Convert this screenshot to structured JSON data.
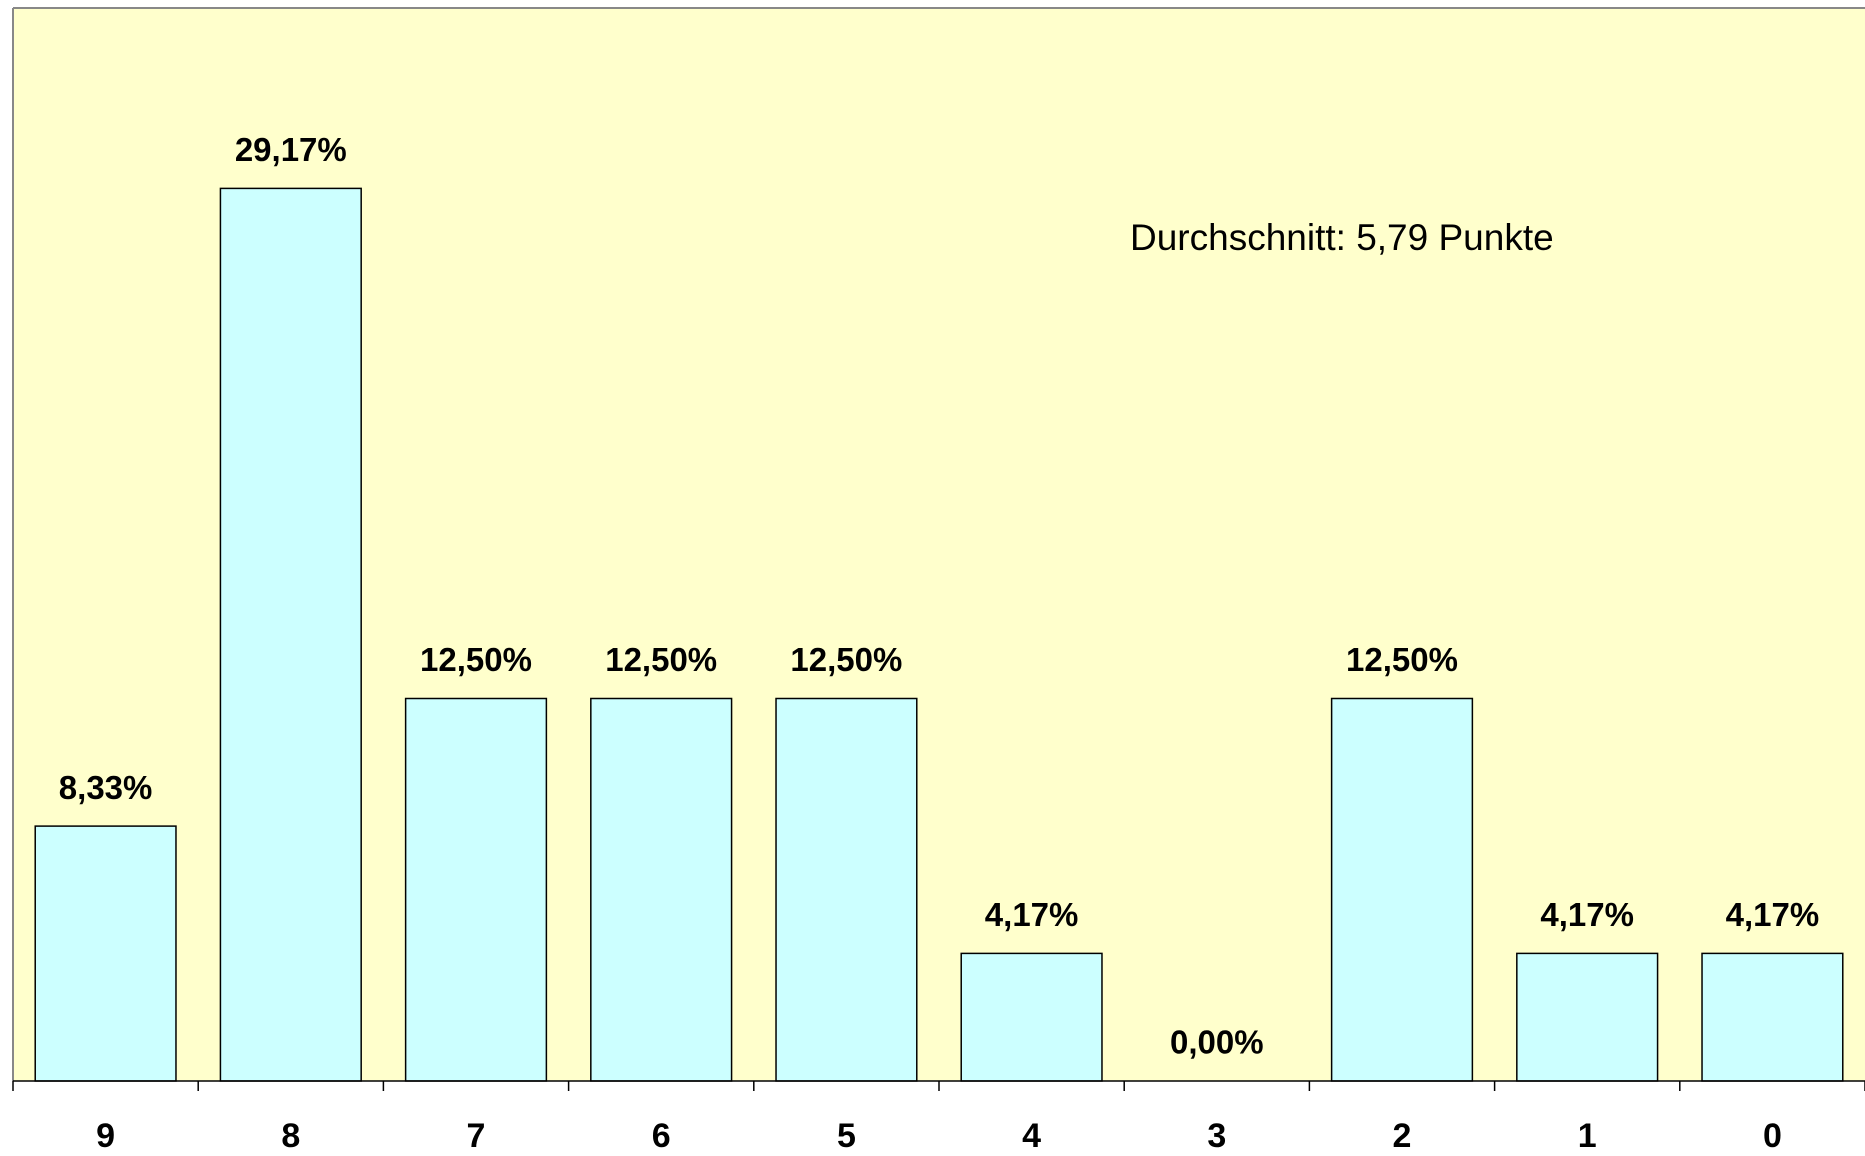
{
  "chart_data": {
    "type": "bar",
    "annotation": "Durchschnitt: 5,79 Punkte",
    "categories": [
      "9",
      "8",
      "7",
      "6",
      "5",
      "4",
      "3",
      "2",
      "1",
      "0"
    ],
    "values": [
      8.33,
      29.17,
      12.5,
      12.5,
      12.5,
      4.17,
      0,
      12.5,
      4.17,
      4.17
    ],
    "value_labels": [
      "8,33%",
      "29,17%",
      "12,50%",
      "12,50%",
      "12,50%",
      "4,17%",
      "0,00%",
      "12,50%",
      "4,17%",
      "4,17%"
    ],
    "color": "#ccffff",
    "background": "#ffffcc",
    "ylim": [
      0,
      35
    ]
  }
}
